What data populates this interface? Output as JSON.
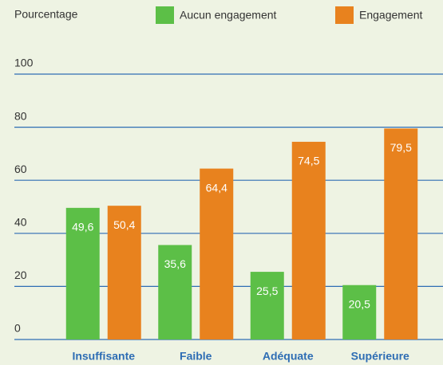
{
  "chart_data": {
    "type": "bar",
    "y_axis_label": "Pourcentage",
    "categories": [
      "Insuffisante",
      "Faible",
      "Adéquate",
      "Supérieure"
    ],
    "series": [
      {
        "name": "Aucun engagement",
        "color": "#5cbf47",
        "values": [
          49.6,
          35.6,
          25.5,
          20.5
        ],
        "value_labels": [
          "49,6",
          "35,6",
          "25,5",
          "20,5"
        ]
      },
      {
        "name": "Engagement",
        "color": "#e8821e",
        "values": [
          50.4,
          64.4,
          74.5,
          79.5
        ],
        "value_labels": [
          "50,4",
          "64,4",
          "74,5",
          "79,5"
        ]
      }
    ],
    "ylim": [
      0,
      100
    ],
    "yticks": [
      0,
      20,
      40,
      60,
      80,
      100
    ],
    "grid": true,
    "grid_color": "#2e6db4",
    "category_color": "#2e6db4",
    "legend": "top"
  }
}
